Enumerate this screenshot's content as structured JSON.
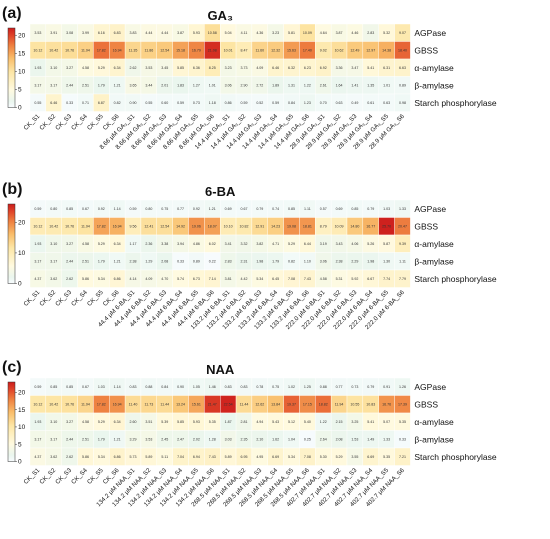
{
  "chart_data": [
    {
      "type": "heatmap",
      "panel_label": "(a)",
      "title": "GA₃",
      "rows": [
        "AGPase",
        "GBSS",
        "α-amylase",
        "β-amylase",
        "Starch phosphorylase"
      ],
      "columns": [
        "CK_S1",
        "CK_S2",
        "CK_S3",
        "CK_S4",
        "CK_S5",
        "CK_S6",
        "8.66 μM GA₃_S1",
        "8.66 μM GA₃_S2",
        "8.66 μM GA₃_S3",
        "8.66 μM GA₃_S4",
        "8.66 μM GA₃_S5",
        "8.66 μM GA₃_S6",
        "14.4 μM GA₃_S1",
        "14.4 μM GA₃_S2",
        "14.4 μM GA₃_S3",
        "14.4 μM GA₃_S4",
        "14.4 μM GA₃_S5",
        "14.4 μM GA₃_S6",
        "28.9 μM GA₃_S1",
        "28.9 μM GA₃_S2",
        "28.9 μM GA₃_S3",
        "28.9 μM GA₃_S4",
        "28.9 μM GA₃_S5",
        "28.9 μM GA₃_S6"
      ],
      "values": [
        [
          "3.53",
          "3.91",
          "3.08",
          "3.99",
          "6.16",
          "6.83",
          "3.83",
          "4.44",
          "4.44",
          "3.87",
          "5.93",
          "10.58",
          "5.04",
          "4.11",
          "4.36",
          "3.23",
          "5.81",
          "10.09",
          "4.64",
          "3.87",
          "4.46",
          "2.83",
          "5.32",
          "9.07"
        ],
        [
          "10.12",
          "10.42",
          "10.76",
          "11.94",
          "17.82",
          "16.94",
          "11.35",
          "11.86",
          "12.54",
          "15.18",
          "16.79",
          "21.08",
          "10.01",
          "8.47",
          "11.60",
          "12.32",
          "15.63",
          "17.40",
          "9.02",
          "10.62",
          "12.49",
          "12.97",
          "14.38",
          "18.40"
        ],
        [
          "1.93",
          "3.10",
          "3.27",
          "4.58",
          "5.29",
          "6.34",
          "2.62",
          "3.53",
          "3.45",
          "5.85",
          "6.36",
          "8.25",
          "3.23",
          "3.73",
          "4.09",
          "6.46",
          "6.32",
          "6.23",
          "6.92",
          "3.36",
          "3.47",
          "5.41",
          "6.31",
          "6.63"
        ],
        [
          "3.17",
          "3.17",
          "2.44",
          "2.51",
          "1.79",
          "1.21",
          "3.65",
          "3.44",
          "2.01",
          "1.83",
          "1.27",
          "1.01",
          "3.06",
          "2.90",
          "2.72",
          "1.89",
          "1.31",
          "1.22",
          "2.61",
          "1.64",
          "1.41",
          "1.35",
          "1.01",
          "0.89"
        ],
        [
          "0.55",
          "6.46",
          "0.33",
          "0.71",
          "6.87",
          "0.82",
          "0.90",
          "0.55",
          "0.60",
          "0.59",
          "0.73",
          "1.18",
          "0.86",
          "0.59",
          "0.52",
          "0.59",
          "0.84",
          "1.23",
          "0.70",
          "0.63",
          "0.49",
          "0.61",
          "0.63",
          "0.98"
        ]
      ],
      "colorbar": {
        "min": 0,
        "max": 22,
        "ticks": [
          0,
          5,
          10,
          15,
          20
        ]
      }
    },
    {
      "type": "heatmap",
      "panel_label": "(b)",
      "title": "6-BA",
      "rows": [
        "AGPase",
        "GBSS",
        "α-amylase",
        "β-amylase",
        "Starch phosphorylase"
      ],
      "columns": [
        "CK_S1",
        "CK_S2",
        "CK_S3",
        "CK_S4",
        "CK_S5",
        "CK_S6",
        "44.4 μM 6-BA_S1",
        "44.4 μM 6-BA_S2",
        "44.4 μM 6-BA_S3",
        "44.4 μM 6-BA_S4",
        "44.4 μM 6-BA_S5",
        "44.4 μM 6-BA_S6",
        "133.2 μM 6-BA_S1",
        "133.2 μM 6-BA_S2",
        "133.2 μM 6-BA_S3",
        "133.2 μM 6-BA_S4",
        "133.2 μM 6-BA_S5",
        "133.2 μM 6-BA_S6",
        "222.0 μM 6-BA_S1",
        "222.0 μM 6-BA_S2",
        "222.0 μM 6-BA_S3",
        "222.0 μM 6-BA_S4",
        "222.0 μM 6-BA_S5",
        "222.0 μM 6-BA_S6"
      ],
      "values": [
        [
          "0.59",
          "0.80",
          "0.85",
          "0.67",
          "0.92",
          "1.14",
          "0.59",
          "0.80",
          "0.75",
          "0.77",
          "0.92",
          "1.21",
          "0.69",
          "0.67",
          "0.79",
          "0.74",
          "0.85",
          "1.11",
          "0.57",
          "0.69",
          "0.85",
          "0.79",
          "1.03",
          "1.33"
        ],
        [
          "10.12",
          "10.42",
          "10.76",
          "11.94",
          "17.82",
          "16.94",
          "9.56",
          "12.41",
          "12.54",
          "14.92",
          "19.06",
          "18.07",
          "10.10",
          "10.82",
          "12.91",
          "14.23",
          "19.08",
          "18.81",
          "8.79",
          "10.09",
          "14.80",
          "16.77",
          "25.70",
          "20.47"
        ],
        [
          "1.93",
          "3.10",
          "3.27",
          "4.58",
          "5.29",
          "6.34",
          "1.17",
          "2.36",
          "3.38",
          "3.94",
          "4.86",
          "6.02",
          "3.41",
          "3.32",
          "3.82",
          "4.71",
          "5.29",
          "6.44",
          "3.19",
          "3.43",
          "4.06",
          "5.26",
          "5.87",
          "9.39"
        ],
        [
          "3.17",
          "3.17",
          "2.44",
          "2.51",
          "1.79",
          "1.21",
          "2.38",
          "1.29",
          "2.08",
          "0.33",
          "0.89",
          "0.22",
          "2.83",
          "2.31",
          "1.98",
          "1.79",
          "0.82",
          "1.10",
          "3.06",
          "2.38",
          "2.29",
          "1.98",
          "1.30",
          "1.11"
        ],
        [
          "4.37",
          "3.62",
          "2.62",
          "5.86",
          "5.34",
          "6.86",
          "4.14",
          "4.09",
          "4.70",
          "5.74",
          "6.73",
          "7.14",
          "3.81",
          "4.42",
          "5.34",
          "6.45",
          "7.08",
          "7.43",
          "4.58",
          "5.31",
          "5.92",
          "6.67",
          "7.74",
          "7.79"
        ]
      ],
      "colorbar": {
        "min": 0,
        "max": 26,
        "ticks": [
          0,
          10,
          20
        ]
      }
    },
    {
      "type": "heatmap",
      "panel_label": "(c)",
      "title": "NAA",
      "rows": [
        "AGPase",
        "GBSS",
        "α-amylase",
        "β-amylase",
        "Starch phosphorylase"
      ],
      "columns": [
        "CK_S1",
        "CK_S2",
        "CK_S3",
        "CK_S4",
        "CK_S5",
        "CK_S6",
        "134.2 μM NAA_S1",
        "134.2 μM NAA_S2",
        "134.2 μM NAA_S3",
        "134.2 μM NAA_S4",
        "134.2 μM NAA_S5",
        "134.2 μM NAA_S6",
        "268.5 μM NAA_S1",
        "268.5 μM NAA_S2",
        "268.5 μM NAA_S3",
        "268.5 μM NAA_S4",
        "268.5 μM NAA_S5",
        "268.5 μM NAA_S6",
        "402.7 μM NAA_S1",
        "402.7 μM NAA_S2",
        "402.7 μM NAA_S3",
        "402.7 μM NAA_S4",
        "402.7 μM NAA_S5",
        "402.7 μM NAA_S6"
      ],
      "values": [
        [
          "0.59",
          "0.85",
          "0.85",
          "0.67",
          "1.03",
          "1.14",
          "0.83",
          "0.88",
          "0.84",
          "0.90",
          "1.05",
          "1.46",
          "0.83",
          "0.83",
          "0.78",
          "0.75",
          "1.02",
          "1.25",
          "0.88",
          "0.77",
          "0.73",
          "0.79",
          "0.91",
          "1.26"
        ],
        [
          "10.12",
          "10.42",
          "10.76",
          "11.94",
          "17.82",
          "16.94",
          "11.40",
          "11.73",
          "11.44",
          "13.24",
          "15.61",
          "21.47",
          "22.54",
          "11.44",
          "12.62",
          "13.84",
          "19.37",
          "17.15",
          "18.82",
          "11.94",
          "10.55",
          "10.83",
          "16.76",
          "17.39"
        ],
        [
          "1.93",
          "3.10",
          "3.27",
          "4.58",
          "5.29",
          "6.34",
          "2.60",
          "3.51",
          "5.39",
          "5.85",
          "5.93",
          "5.35",
          "1.87",
          "2.81",
          "4.94",
          "5.43",
          "5.12",
          "5.40",
          "1.22",
          "2.15",
          "3.25",
          "5.41",
          "5.07",
          "5.35"
        ],
        [
          "3.17",
          "3.17",
          "2.44",
          "2.51",
          "1.79",
          "1.21",
          "3.29",
          "3.53",
          "2.45",
          "2.47",
          "2.02",
          "1.28",
          "3.03",
          "2.35",
          "2.10",
          "1.62",
          "1.04",
          "0.25",
          "2.64",
          "2.08",
          "1.53",
          "1.49",
          "1.33",
          "0.33"
        ],
        [
          "4.37",
          "3.62",
          "2.62",
          "5.86",
          "5.34",
          "6.86",
          "5.73",
          "5.89",
          "5.11",
          "7.04",
          "6.94",
          "7.43",
          "5.89",
          "6.95",
          "4.95",
          "6.69",
          "5.34",
          "7.08",
          "5.30",
          "5.29",
          "3.55",
          "6.69",
          "5.35",
          "7.21"
        ]
      ],
      "colorbar": {
        "min": 0,
        "max": 23,
        "ticks": [
          0,
          5,
          10,
          15,
          20
        ]
      }
    }
  ]
}
